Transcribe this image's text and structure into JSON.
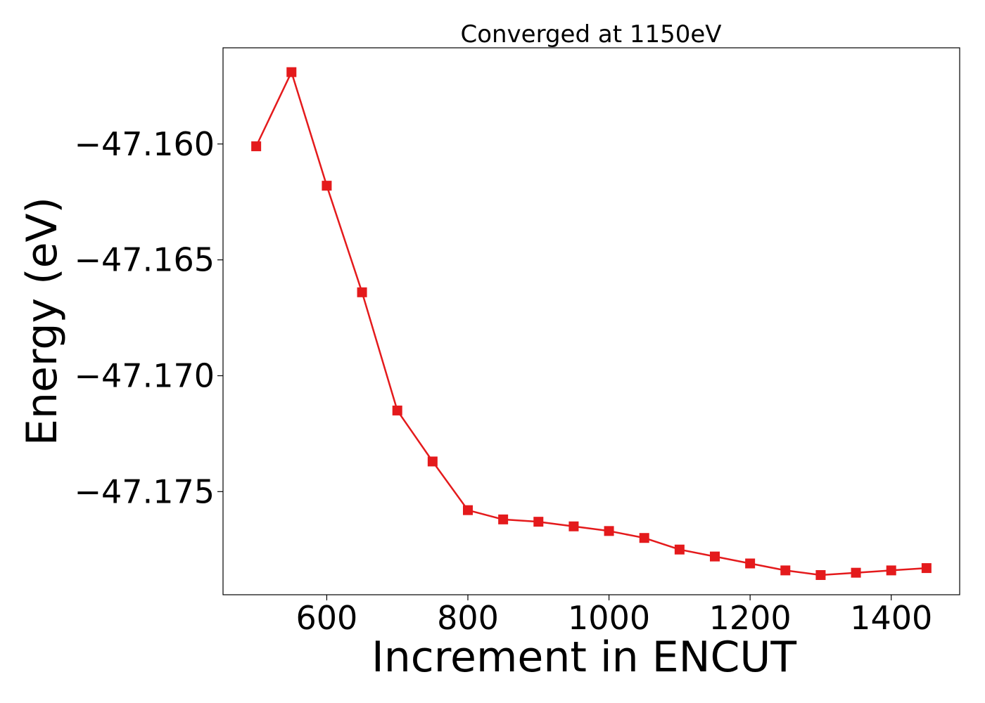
{
  "chart_data": {
    "type": "line",
    "title": "Converged at 1150eV",
    "xlabel": "Increment in ENCUT",
    "ylabel": "Energy (eV)",
    "x": [
      500,
      550,
      600,
      650,
      700,
      750,
      800,
      850,
      900,
      950,
      1000,
      1050,
      1100,
      1150,
      1200,
      1250,
      1300,
      1350,
      1400,
      1450
    ],
    "series": [
      {
        "values": [
          -47.1601,
          -47.1569,
          -47.1618,
          -47.1664,
          -47.1715,
          -47.1737,
          -47.1758,
          -47.1762,
          -47.1763,
          -47.1765,
          -47.1767,
          -47.177,
          -47.1775,
          -47.1778,
          -47.1781,
          -47.1784,
          -47.1786,
          -47.1785,
          -47.1784,
          -47.1783
        ],
        "color": "#e41a1c",
        "marker": "square"
      }
    ],
    "xlim": [
      453,
      1497
    ],
    "ylim": [
      -47.17945,
      -47.15585
    ],
    "xticks": [
      600,
      800,
      1000,
      1200,
      1400
    ],
    "xtick_labels": [
      "600",
      "800",
      "1000",
      "1200",
      "1400"
    ],
    "yticks": [
      -47.16,
      -47.165,
      -47.17,
      -47.175
    ],
    "ytick_labels": [
      "−47.160",
      "−47.165",
      "−47.170",
      "−47.175"
    ],
    "grid": false,
    "legend": "none"
  }
}
